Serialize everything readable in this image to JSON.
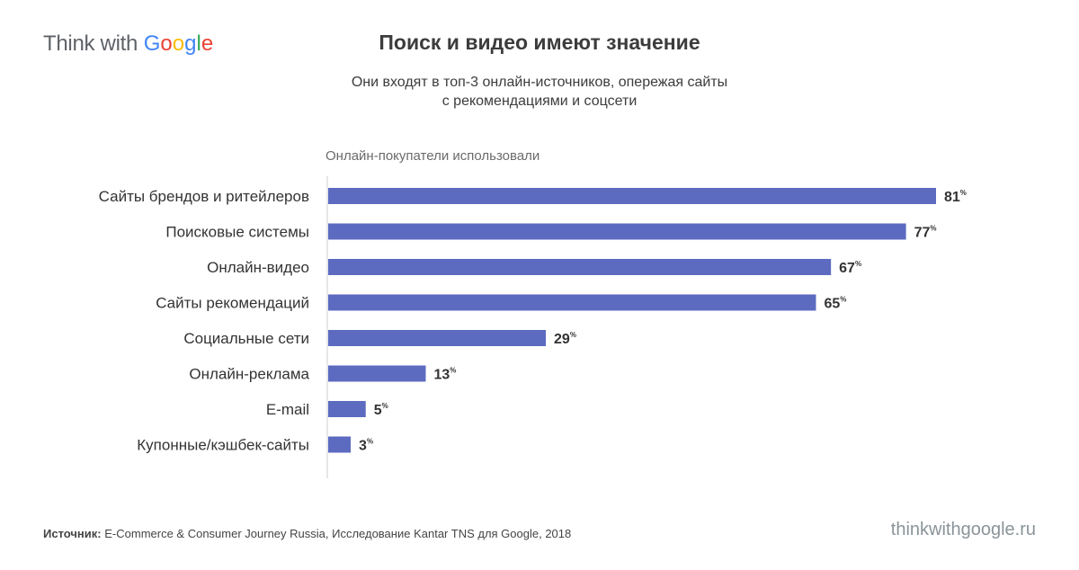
{
  "brand": {
    "think_with": "Think with",
    "google_letters": [
      {
        "ch": "G",
        "color": "#4285F4"
      },
      {
        "ch": "o",
        "color": "#EA4335"
      },
      {
        "ch": "o",
        "color": "#FBBC05"
      },
      {
        "ch": "g",
        "color": "#4285F4"
      },
      {
        "ch": "l",
        "color": "#34A853"
      },
      {
        "ch": "e",
        "color": "#EA4335"
      }
    ]
  },
  "header": {
    "title": "Поиск и видео имеют значение",
    "subtitle_line1": "Они входят в топ-3 онлайн-источников, опережая сайты",
    "subtitle_line2": "с рекомендациями и соцсети"
  },
  "chart_data": {
    "type": "bar",
    "orientation": "horizontal",
    "series_caption": "Онлайн-покупатели использовали",
    "value_suffix": "%",
    "bar_color": "#5c6bc0",
    "categories": [
      "Сайты брендов и ритейлеров",
      "Поисковые системы",
      "Онлайн-видео",
      "Сайты рекомендаций",
      "Социальные сети",
      "Онлайн-реклама",
      "E-mail",
      "Купонные/кэшбек-сайты"
    ],
    "values": [
      81,
      77,
      67,
      65,
      29,
      13,
      5,
      3
    ],
    "xlim": [
      0,
      81
    ],
    "grid": false,
    "legend": "none"
  },
  "footer": {
    "source_label": "Источник:",
    "source_text": "E-Commerce & Consumer Journey Russia, Исследование Kantar TNS для Google, 2018",
    "site": "thinkwithgoogle.ru"
  }
}
